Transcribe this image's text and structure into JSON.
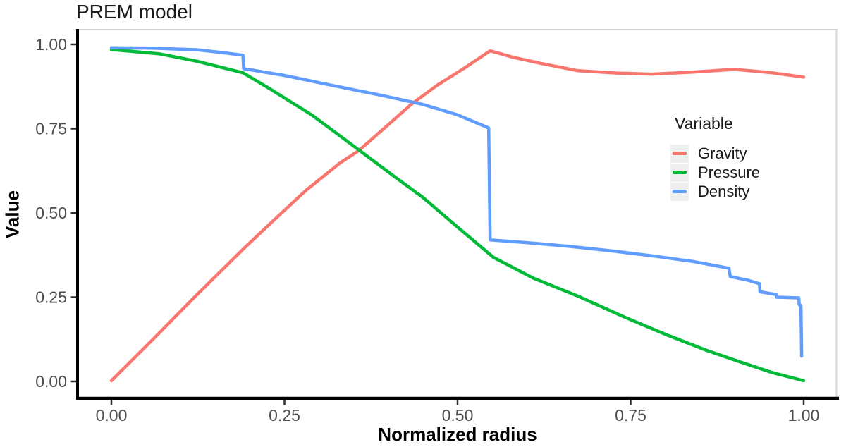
{
  "chart_data": {
    "type": "line",
    "title": "PREM model",
    "xlabel": "Normalized radius",
    "ylabel": "Value",
    "xlim": [
      0,
      1
    ],
    "ylim": [
      0,
      1
    ],
    "grid": "off",
    "xticks": {
      "values": [
        0,
        0.25,
        0.5,
        0.75,
        1.0
      ],
      "labels": [
        "0.00",
        "0.25",
        "0.50",
        "0.75",
        "1.00"
      ]
    },
    "yticks": {
      "values": [
        0,
        0.25,
        0.5,
        0.75,
        1.0
      ],
      "labels": [
        "0.00",
        "0.25",
        "0.50",
        "0.75",
        "1.00"
      ]
    },
    "legend": {
      "title": "Variable",
      "position": "right-inside"
    },
    "style": {
      "background": "#FFFFFF",
      "axis_line": "#000000",
      "tick_color": "#333333",
      "axis_text": "#4D4D4D",
      "title_color": "#1A1A1A",
      "panel_border": "#D4D4D4",
      "legend_key_fill": "#EFEFEF"
    },
    "series": [
      {
        "name": "Gravity",
        "color": "#F8766D",
        "points": [
          [
            0.0,
            0.002
          ],
          [
            0.06,
            0.125
          ],
          [
            0.12,
            0.25
          ],
          [
            0.19,
            0.392
          ],
          [
            0.226,
            0.462
          ],
          [
            0.28,
            0.565
          ],
          [
            0.33,
            0.648
          ],
          [
            0.358,
            0.686
          ],
          [
            0.4,
            0.762
          ],
          [
            0.433,
            0.822
          ],
          [
            0.47,
            0.878
          ],
          [
            0.51,
            0.93
          ],
          [
            0.547,
            0.981
          ],
          [
            0.58,
            0.962
          ],
          [
            0.62,
            0.944
          ],
          [
            0.674,
            0.922
          ],
          [
            0.73,
            0.915
          ],
          [
            0.78,
            0.912
          ],
          [
            0.84,
            0.918
          ],
          [
            0.9,
            0.926
          ],
          [
            0.95,
            0.917
          ],
          [
            1.0,
            0.903
          ]
        ]
      },
      {
        "name": "Pressure",
        "color": "#00BA38",
        "points": [
          [
            0.0,
            0.985
          ],
          [
            0.07,
            0.972
          ],
          [
            0.124,
            0.95
          ],
          [
            0.19,
            0.916
          ],
          [
            0.226,
            0.872
          ],
          [
            0.29,
            0.79
          ],
          [
            0.358,
            0.686
          ],
          [
            0.41,
            0.606
          ],
          [
            0.45,
            0.546
          ],
          [
            0.5,
            0.458
          ],
          [
            0.552,
            0.368
          ],
          [
            0.61,
            0.306
          ],
          [
            0.674,
            0.253
          ],
          [
            0.74,
            0.192
          ],
          [
            0.8,
            0.14
          ],
          [
            0.86,
            0.092
          ],
          [
            0.908,
            0.058
          ],
          [
            0.955,
            0.026
          ],
          [
            1.0,
            0.002
          ]
        ]
      },
      {
        "name": "Density",
        "color": "#619CFF",
        "points": [
          [
            0.0,
            0.99
          ],
          [
            0.06,
            0.989
          ],
          [
            0.124,
            0.984
          ],
          [
            0.16,
            0.976
          ],
          [
            0.19,
            0.968
          ],
          [
            0.191,
            0.928
          ],
          [
            0.25,
            0.908
          ],
          [
            0.32,
            0.878
          ],
          [
            0.39,
            0.849
          ],
          [
            0.45,
            0.822
          ],
          [
            0.5,
            0.791
          ],
          [
            0.545,
            0.752
          ],
          [
            0.547,
            0.42
          ],
          [
            0.6,
            0.412
          ],
          [
            0.66,
            0.401
          ],
          [
            0.72,
            0.388
          ],
          [
            0.78,
            0.373
          ],
          [
            0.84,
            0.356
          ],
          [
            0.892,
            0.336
          ],
          [
            0.894,
            0.311
          ],
          [
            0.92,
            0.3
          ],
          [
            0.936,
            0.29
          ],
          [
            0.937,
            0.266
          ],
          [
            0.96,
            0.258
          ],
          [
            0.961,
            0.25
          ],
          [
            0.993,
            0.248
          ],
          [
            0.9935,
            0.228
          ],
          [
            0.996,
            0.225
          ],
          [
            0.997,
            0.075
          ]
        ]
      }
    ]
  }
}
